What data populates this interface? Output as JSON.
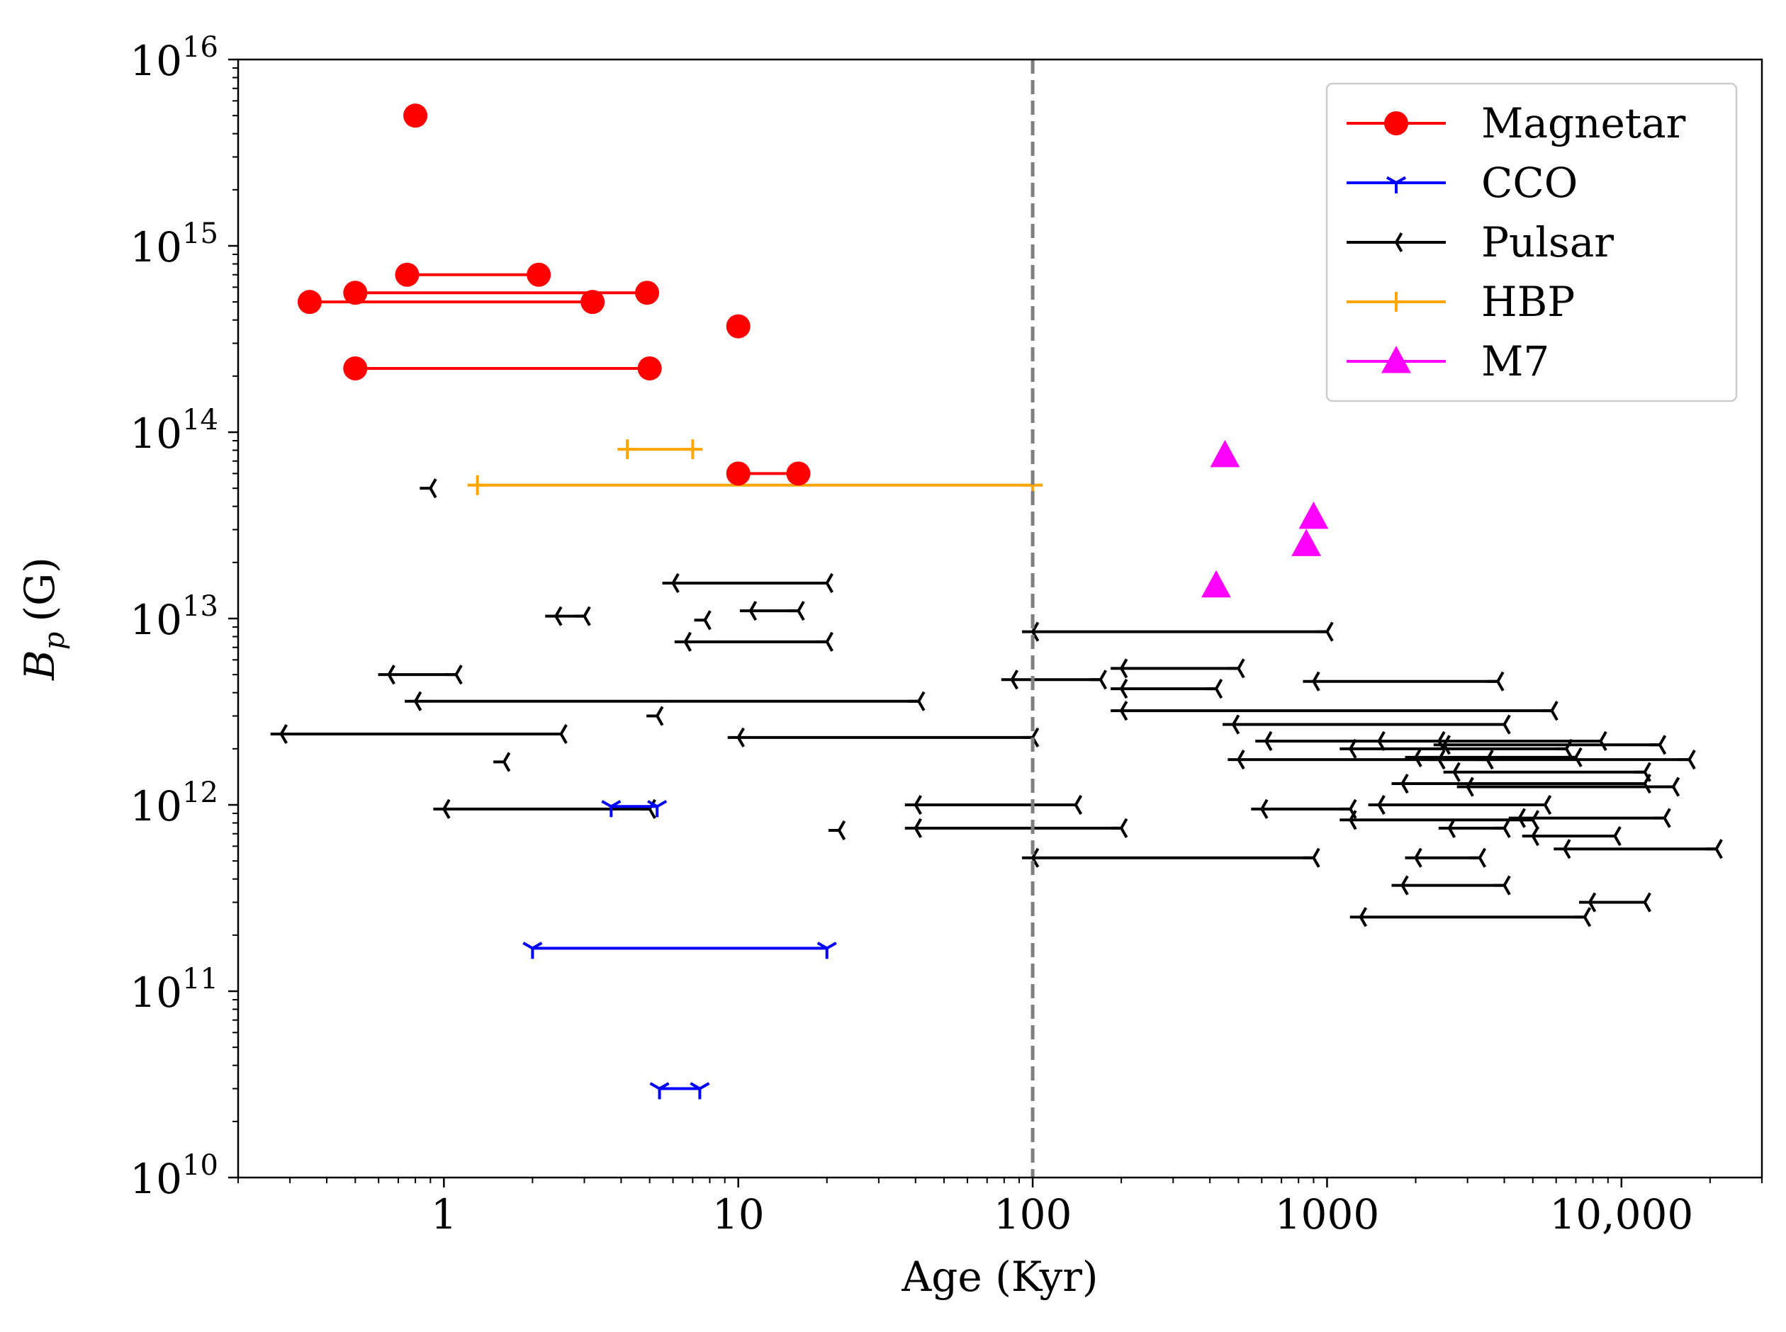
{
  "chart_data": {
    "type": "scatter",
    "xscale": "log",
    "yscale": "log",
    "xlim": [
      0.2,
      30000
    ],
    "ylim": [
      10000000000.0,
      1e+16
    ],
    "xlabel": "Age (Kyr)",
    "ylabel_main": "B",
    "ylabel_sub": "p",
    "ylabel_unit": "(G)",
    "x_ticks": [
      {
        "value": 1,
        "label": "1"
      },
      {
        "value": 10,
        "label": "10"
      },
      {
        "value": 100,
        "label": "100"
      },
      {
        "value": 1000,
        "label": "1000"
      },
      {
        "value": 10000,
        "label": "10,000"
      }
    ],
    "y_ticks": [
      {
        "value": 10000000000.0,
        "base": "10",
        "exp": "10"
      },
      {
        "value": 100000000000.0,
        "base": "10",
        "exp": "11"
      },
      {
        "value": 1000000000000.0,
        "base": "10",
        "exp": "12"
      },
      {
        "value": 10000000000000.0,
        "base": "10",
        "exp": "13"
      },
      {
        "value": 100000000000000.0,
        "base": "10",
        "exp": "14"
      },
      {
        "value": 1000000000000000.0,
        "base": "10",
        "exp": "15"
      },
      {
        "value": 1e+16,
        "base": "10",
        "exp": "16"
      }
    ],
    "reference_line": {
      "x": 100,
      "style": "dashed",
      "color": "#808080"
    },
    "legend_position": "top-right",
    "series": [
      {
        "name": "Magnetar",
        "color": "#ff0000",
        "marker": "circle",
        "points": [
          [
            0.8,
            5000000000000000.0
          ],
          [
            10,
            370000000000000.0
          ]
        ],
        "ranges": [
          [
            0.75,
            2.1,
            700000000000000.0
          ],
          [
            0.35,
            3.2,
            500000000000000.0
          ],
          [
            0.5,
            4.9,
            560000000000000.0
          ],
          [
            0.5,
            5,
            220000000000000.0
          ],
          [
            10,
            16,
            60000000000000.0
          ]
        ]
      },
      {
        "name": "CCO",
        "color": "#0000ff",
        "marker": "tri_down",
        "points": [],
        "ranges": [
          [
            3.7,
            5.3,
            980000000000.0
          ],
          [
            2,
            20,
            170000000000.0
          ],
          [
            5.4,
            7.4,
            30000000000.0
          ]
        ]
      },
      {
        "name": "Pulsar",
        "color": "#000000",
        "marker": "tri_left",
        "points": [
          [
            0.9,
            50000000000000.0
          ],
          [
            7.7,
            9800000000000.0
          ],
          [
            1.6,
            1700000000000.0
          ],
          [
            22,
            730000000000.0
          ],
          [
            5.3,
            3000000000000.0
          ]
        ],
        "ranges": [
          [
            6,
            20,
            15500000000000.0
          ],
          [
            2.4,
            3,
            10300000000000.0
          ],
          [
            11,
            16,
            11000000000000.0
          ],
          [
            6.6,
            20,
            7500000000000.0
          ],
          [
            0.65,
            1.1,
            5000000000000.0
          ],
          [
            0.8,
            41,
            3600000000000.0
          ],
          [
            0.28,
            2.5,
            2400000000000.0
          ],
          [
            10,
            100,
            2300000000000.0
          ],
          [
            1,
            5,
            950000000000.0
          ],
          [
            40,
            140,
            1000000000000.0
          ],
          [
            40,
            200,
            750000000000.0
          ],
          [
            100,
            1000,
            8500000000000.0
          ],
          [
            85,
            170,
            4700000000000.0
          ],
          [
            200,
            500,
            5400000000000.0
          ],
          [
            200,
            420,
            4200000000000.0
          ],
          [
            200,
            5800,
            3200000000000.0
          ],
          [
            900,
            3800,
            4600000000000.0
          ],
          [
            480,
            4000,
            2700000000000.0
          ],
          [
            620,
            2400,
            2200000000000.0
          ],
          [
            1200,
            6500,
            2000000000000.0
          ],
          [
            1500,
            8500,
            2200000000000.0
          ],
          [
            2500,
            13500,
            2100000000000.0
          ],
          [
            500,
            3500,
            1750000000000.0
          ],
          [
            2000,
            7000,
            1800000000000.0
          ],
          [
            2400,
            17000,
            1750000000000.0
          ],
          [
            2700,
            12000,
            1500000000000.0
          ],
          [
            1800,
            12000,
            1300000000000.0
          ],
          [
            3000,
            15000,
            1250000000000.0
          ],
          [
            600,
            1200,
            950000000000.0
          ],
          [
            1500,
            5500,
            1000000000000.0
          ],
          [
            4500,
            14000,
            850000000000.0
          ],
          [
            1200,
            5000,
            830000000000.0
          ],
          [
            5000,
            9500,
            680000000000.0
          ],
          [
            6400,
            21000,
            580000000000.0
          ],
          [
            100,
            900,
            520000000000.0
          ],
          [
            2000,
            3300,
            520000000000.0
          ],
          [
            2600,
            4000,
            750000000000.0
          ],
          [
            1800,
            4000,
            370000000000.0
          ],
          [
            1300,
            7500,
            250000000000.0
          ],
          [
            7800,
            12000,
            300000000000.0
          ]
        ]
      },
      {
        "name": "HBP",
        "color": "#ffa500",
        "marker": "plus",
        "points": [],
        "ranges": [
          [
            4.2,
            7,
            81000000000000.0
          ],
          [
            1.3,
            100,
            52000000000000.0
          ]
        ]
      },
      {
        "name": "M7",
        "color": "#ff00ff",
        "marker": "triangle",
        "points": [
          [
            450,
            75000000000000.0
          ],
          [
            900,
            35000000000000.0
          ],
          [
            850,
            25000000000000.0
          ],
          [
            420,
            15000000000000.0
          ]
        ],
        "ranges": []
      }
    ]
  }
}
